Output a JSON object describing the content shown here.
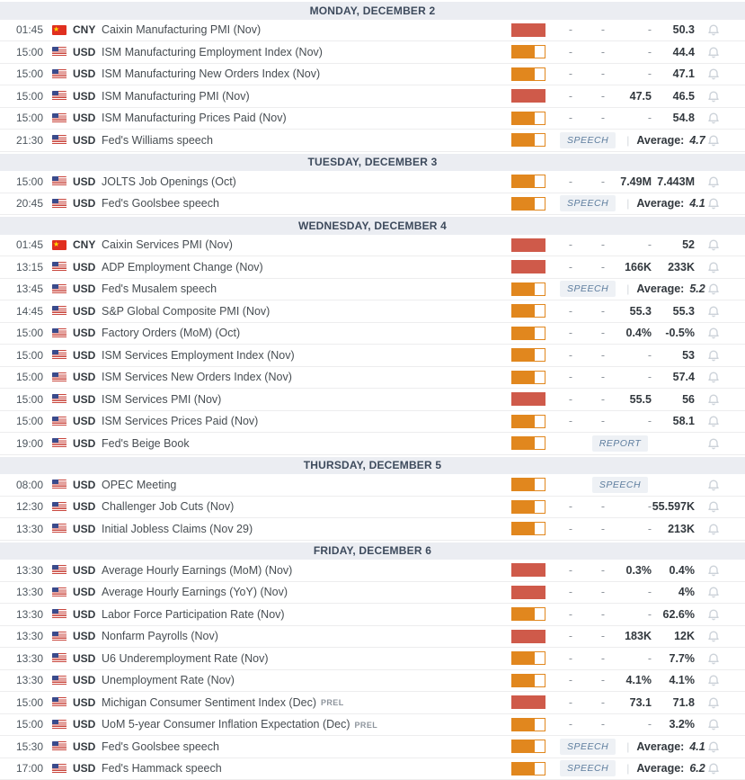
{
  "colors": {
    "impact_high": "#cf5a4a",
    "impact_medium": "#e1871e",
    "header_bg": "#ebedf2",
    "header_text": "#3d4a5c",
    "badge_text": "#5d7d9e",
    "badge_bg": "#eef1f5",
    "value_text": "#32383e",
    "muted": "#8d949c",
    "row_border": "#ededee",
    "bell": "#ccd2d9"
  },
  "labels": {
    "average": "Average:",
    "prel": "PREL",
    "speech_badge": "SPEECH",
    "report_badge": "REPORT"
  },
  "days": [
    {
      "label": "MONDAY, DECEMBER 2",
      "events": [
        {
          "time": "01:45",
          "currency": "CNY",
          "flag": "cn",
          "title": "Caixin Manufacturing PMI (Nov)",
          "impact": "high",
          "actual": "-",
          "deviation": "-",
          "consensus": "-",
          "previous": "50.3"
        },
        {
          "time": "15:00",
          "currency": "USD",
          "flag": "us",
          "title": "ISM Manufacturing Employment Index (Nov)",
          "impact": "medium",
          "actual": "-",
          "deviation": "-",
          "consensus": "-",
          "previous": "44.4"
        },
        {
          "time": "15:00",
          "currency": "USD",
          "flag": "us",
          "title": "ISM Manufacturing New Orders Index (Nov)",
          "impact": "medium",
          "actual": "-",
          "deviation": "-",
          "consensus": "-",
          "previous": "47.1"
        },
        {
          "time": "15:00",
          "currency": "USD",
          "flag": "us",
          "title": "ISM Manufacturing PMI (Nov)",
          "impact": "high",
          "actual": "-",
          "deviation": "-",
          "consensus": "47.5",
          "previous": "46.5"
        },
        {
          "time": "15:00",
          "currency": "USD",
          "flag": "us",
          "title": "ISM Manufacturing Prices Paid (Nov)",
          "impact": "medium",
          "actual": "-",
          "deviation": "-",
          "consensus": "-",
          "previous": "54.8"
        },
        {
          "time": "21:30",
          "currency": "USD",
          "flag": "us",
          "title": "Fed's Williams speech",
          "impact": "medium",
          "badge": "SPEECH",
          "average": "4.7"
        }
      ]
    },
    {
      "label": "TUESDAY, DECEMBER 3",
      "events": [
        {
          "time": "15:00",
          "currency": "USD",
          "flag": "us",
          "title": "JOLTS Job Openings (Oct)",
          "impact": "medium",
          "actual": "-",
          "deviation": "-",
          "consensus": "7.49M",
          "previous": "7.443M"
        },
        {
          "time": "20:45",
          "currency": "USD",
          "flag": "us",
          "title": "Fed's Goolsbee speech",
          "impact": "medium",
          "badge": "SPEECH",
          "average": "4.1"
        }
      ]
    },
    {
      "label": "WEDNESDAY, DECEMBER 4",
      "events": [
        {
          "time": "01:45",
          "currency": "CNY",
          "flag": "cn",
          "title": "Caixin Services PMI (Nov)",
          "impact": "high",
          "actual": "-",
          "deviation": "-",
          "consensus": "-",
          "previous": "52"
        },
        {
          "time": "13:15",
          "currency": "USD",
          "flag": "us",
          "title": "ADP Employment Change (Nov)",
          "impact": "high",
          "actual": "-",
          "deviation": "-",
          "consensus": "166K",
          "previous": "233K"
        },
        {
          "time": "13:45",
          "currency": "USD",
          "flag": "us",
          "title": "Fed's Musalem speech",
          "impact": "medium",
          "badge": "SPEECH",
          "average": "5.2"
        },
        {
          "time": "14:45",
          "currency": "USD",
          "flag": "us",
          "title": "S&P Global Composite PMI (Nov)",
          "impact": "medium",
          "actual": "-",
          "deviation": "-",
          "consensus": "55.3",
          "previous": "55.3"
        },
        {
          "time": "15:00",
          "currency": "USD",
          "flag": "us",
          "title": "Factory Orders (MoM) (Oct)",
          "impact": "medium",
          "actual": "-",
          "deviation": "-",
          "consensus": "0.4%",
          "previous": "-0.5%"
        },
        {
          "time": "15:00",
          "currency": "USD",
          "flag": "us",
          "title": "ISM Services Employment Index (Nov)",
          "impact": "medium",
          "actual": "-",
          "deviation": "-",
          "consensus": "-",
          "previous": "53"
        },
        {
          "time": "15:00",
          "currency": "USD",
          "flag": "us",
          "title": "ISM Services New Orders Index (Nov)",
          "impact": "medium",
          "actual": "-",
          "deviation": "-",
          "consensus": "-",
          "previous": "57.4"
        },
        {
          "time": "15:00",
          "currency": "USD",
          "flag": "us",
          "title": "ISM Services PMI (Nov)",
          "impact": "high",
          "actual": "-",
          "deviation": "-",
          "consensus": "55.5",
          "previous": "56"
        },
        {
          "time": "15:00",
          "currency": "USD",
          "flag": "us",
          "title": "ISM Services Prices Paid (Nov)",
          "impact": "medium",
          "actual": "-",
          "deviation": "-",
          "consensus": "-",
          "previous": "58.1"
        },
        {
          "time": "19:00",
          "currency": "USD",
          "flag": "us",
          "title": "Fed's Beige Book",
          "impact": "medium",
          "badge": "REPORT"
        }
      ]
    },
    {
      "label": "THURSDAY, DECEMBER 5",
      "events": [
        {
          "time": "08:00",
          "currency": "USD",
          "flag": "us",
          "title": "OPEC Meeting",
          "impact": "medium",
          "badge": "SPEECH"
        },
        {
          "time": "12:30",
          "currency": "USD",
          "flag": "us",
          "title": "Challenger Job Cuts (Nov)",
          "impact": "medium",
          "actual": "-",
          "deviation": "-",
          "consensus": "-",
          "previous": "55.597K"
        },
        {
          "time": "13:30",
          "currency": "USD",
          "flag": "us",
          "title": "Initial Jobless Claims (Nov 29)",
          "impact": "medium",
          "actual": "-",
          "deviation": "-",
          "consensus": "-",
          "previous": "213K"
        }
      ]
    },
    {
      "label": "FRIDAY, DECEMBER 6",
      "events": [
        {
          "time": "13:30",
          "currency": "USD",
          "flag": "us",
          "title": "Average Hourly Earnings (MoM) (Nov)",
          "impact": "high",
          "actual": "-",
          "deviation": "-",
          "consensus": "0.3%",
          "previous": "0.4%"
        },
        {
          "time": "13:30",
          "currency": "USD",
          "flag": "us",
          "title": "Average Hourly Earnings (YoY) (Nov)",
          "impact": "high",
          "actual": "-",
          "deviation": "-",
          "consensus": "-",
          "previous": "4%"
        },
        {
          "time": "13:30",
          "currency": "USD",
          "flag": "us",
          "title": "Labor Force Participation Rate (Nov)",
          "impact": "medium",
          "actual": "-",
          "deviation": "-",
          "consensus": "-",
          "previous": "62.6%"
        },
        {
          "time": "13:30",
          "currency": "USD",
          "flag": "us",
          "title": "Nonfarm Payrolls (Nov)",
          "impact": "high",
          "actual": "-",
          "deviation": "-",
          "consensus": "183K",
          "previous": "12K"
        },
        {
          "time": "13:30",
          "currency": "USD",
          "flag": "us",
          "title": "U6 Underemployment Rate (Nov)",
          "impact": "medium",
          "actual": "-",
          "deviation": "-",
          "consensus": "-",
          "previous": "7.7%"
        },
        {
          "time": "13:30",
          "currency": "USD",
          "flag": "us",
          "title": "Unemployment Rate (Nov)",
          "impact": "medium",
          "actual": "-",
          "deviation": "-",
          "consensus": "4.1%",
          "previous": "4.1%"
        },
        {
          "time": "15:00",
          "currency": "USD",
          "flag": "us",
          "title": "Michigan Consumer Sentiment Index (Dec)",
          "prel": true,
          "impact": "high",
          "actual": "-",
          "deviation": "-",
          "consensus": "73.1",
          "previous": "71.8"
        },
        {
          "time": "15:00",
          "currency": "USD",
          "flag": "us",
          "title": "UoM 5-year Consumer Inflation Expectation (Dec)",
          "prel": true,
          "impact": "medium",
          "actual": "-",
          "deviation": "-",
          "consensus": "-",
          "previous": "3.2%"
        },
        {
          "time": "15:30",
          "currency": "USD",
          "flag": "us",
          "title": "Fed's Goolsbee speech",
          "impact": "medium",
          "badge": "SPEECH",
          "average": "4.1"
        },
        {
          "time": "17:00",
          "currency": "USD",
          "flag": "us",
          "title": "Fed's Hammack speech",
          "impact": "medium",
          "badge": "SPEECH",
          "average": "6.2"
        }
      ]
    }
  ]
}
